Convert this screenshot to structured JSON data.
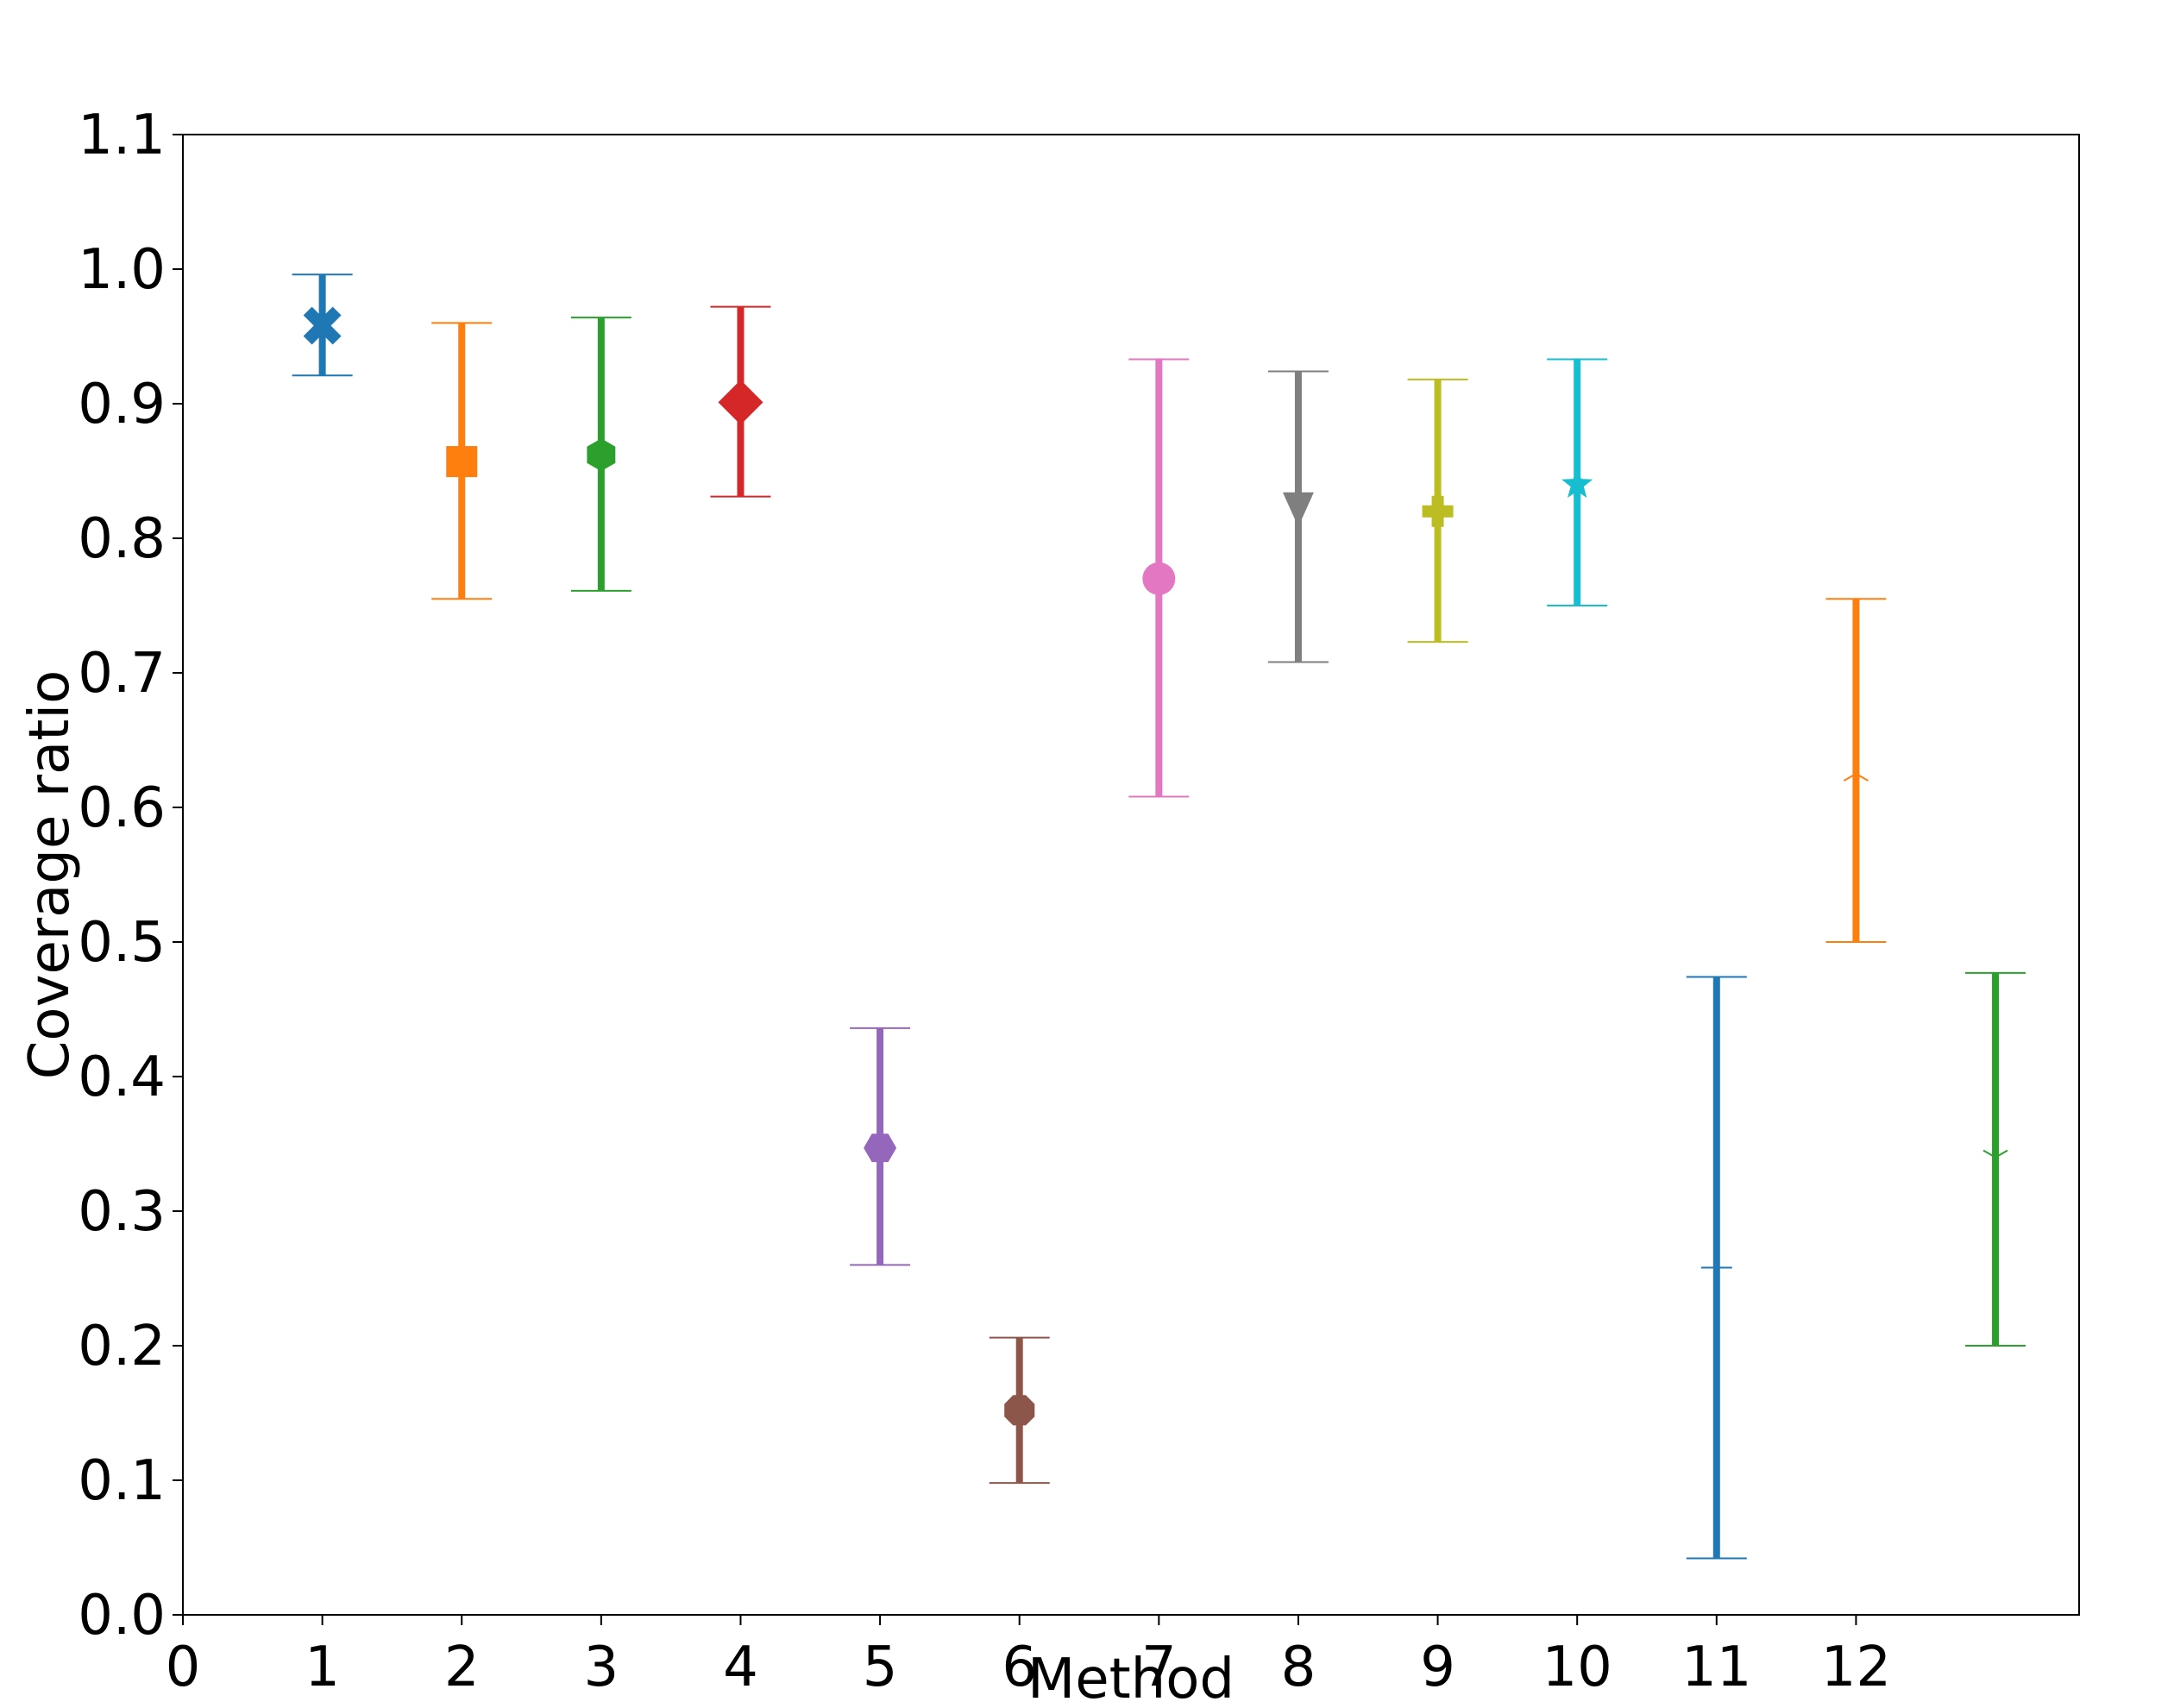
{
  "chart_data": {
    "type": "errorbar",
    "title": "",
    "xlabel": "Method",
    "ylabel": "Coverage ratio",
    "xlim": [
      0,
      13.6
    ],
    "ylim": [
      0,
      1.1
    ],
    "xticks": [
      0,
      1,
      2,
      3,
      4,
      5,
      6,
      7,
      8,
      9,
      10,
      11,
      12
    ],
    "xtick_labels": [
      "0",
      "1",
      "2",
      "3",
      "4",
      "5",
      "6",
      "7",
      "8",
      "9",
      "10",
      "11",
      "12"
    ],
    "yticks": [
      0.0,
      0.1,
      0.2,
      0.3,
      0.4,
      0.5,
      0.6,
      0.7,
      0.8,
      0.9,
      1.0,
      1.1
    ],
    "ytick_labels": [
      "0.0",
      "0.1",
      "0.2",
      "0.3",
      "0.4",
      "0.5",
      "0.6",
      "0.7",
      "0.8",
      "0.9",
      "1.0",
      "1.1"
    ],
    "grid": false,
    "points": [
      {
        "x": 1,
        "y": 0.958,
        "low": 0.921,
        "high": 0.996,
        "color": "#1f77b4",
        "marker": "x-filled"
      },
      {
        "x": 2,
        "y": 0.857,
        "low": 0.755,
        "high": 0.96,
        "color": "#ff7f0e",
        "marker": "square"
      },
      {
        "x": 3,
        "y": 0.862,
        "low": 0.761,
        "high": 0.964,
        "color": "#2ca02c",
        "marker": "hexagon"
      },
      {
        "x": 4,
        "y": 0.901,
        "low": 0.831,
        "high": 0.972,
        "color": "#d62728",
        "marker": "diamond"
      },
      {
        "x": 5,
        "y": 0.347,
        "low": 0.26,
        "high": 0.436,
        "color": "#9467bd",
        "marker": "hexagon2"
      },
      {
        "x": 6,
        "y": 0.152,
        "low": 0.098,
        "high": 0.206,
        "color": "#8c564b",
        "marker": "octagon"
      },
      {
        "x": 7,
        "y": 0.77,
        "low": 0.608,
        "high": 0.933,
        "color": "#e377c2",
        "marker": "circle"
      },
      {
        "x": 8,
        "y": 0.82,
        "low": 0.708,
        "high": 0.924,
        "color": "#7f7f7f",
        "marker": "triangle-down"
      },
      {
        "x": 9,
        "y": 0.82,
        "low": 0.723,
        "high": 0.918,
        "color": "#bcbd22",
        "marker": "plus-filled"
      },
      {
        "x": 10,
        "y": 0.84,
        "low": 0.75,
        "high": 0.933,
        "color": "#17becf",
        "marker": "star"
      },
      {
        "x": 11,
        "y": 0.258,
        "low": 0.042,
        "high": 0.474,
        "color": "#1f77b4",
        "marker": "hline"
      },
      {
        "x": 12,
        "y": 0.625,
        "low": 0.5,
        "high": 0.755,
        "color": "#ff7f0e",
        "marker": "tri-up"
      },
      {
        "x": 13,
        "y": 0.34,
        "low": 0.2,
        "high": 0.477,
        "color": "#2ca02c",
        "marker": "tri-down"
      }
    ]
  }
}
